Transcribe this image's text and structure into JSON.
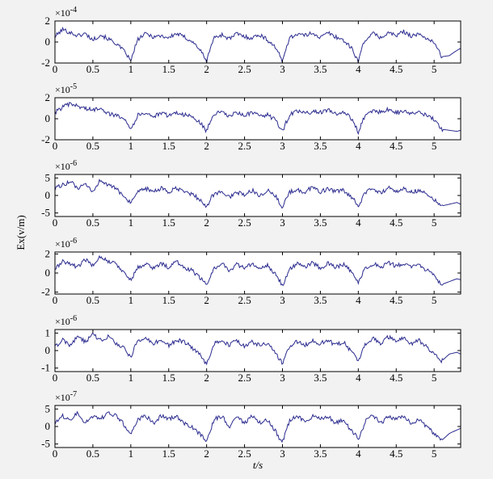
{
  "figure": {
    "ylabel": "Ex(v/m)",
    "xlabel": "t/s",
    "x_ticks": [
      "0",
      "0.5",
      "1",
      "1.5",
      "2",
      "2.5",
      "3",
      "3.5",
      "4",
      "4.5",
      "5"
    ],
    "colors": {
      "figure_bg": "#f2f2f2",
      "axes_bg": "#ffffff",
      "line": "#2b2b8f",
      "frame": "#000000"
    }
  },
  "chart_data": [
    {
      "type": "line",
      "exponent_label": "×10-4",
      "y_ticks": [
        "2",
        "0",
        "-2"
      ],
      "xlim": [
        0,
        5.35
      ],
      "ylim": [
        -2,
        2
      ],
      "x": [
        0,
        0.1,
        0.2,
        0.3,
        0.4,
        0.5,
        0.6,
        0.7,
        0.8,
        0.9,
        0.95,
        1,
        1.05,
        1.1,
        1.2,
        1.3,
        1.4,
        1.5,
        1.6,
        1.7,
        1.8,
        1.9,
        1.95,
        2,
        2.05,
        2.1,
        2.2,
        2.3,
        2.4,
        2.5,
        2.6,
        2.7,
        2.8,
        2.9,
        2.95,
        3,
        3.05,
        3.1,
        3.2,
        3.3,
        3.4,
        3.5,
        3.6,
        3.7,
        3.8,
        3.9,
        3.95,
        4,
        4.05,
        4.1,
        4.2,
        4.3,
        4.4,
        4.5,
        4.6,
        4.7,
        4.8,
        4.9,
        5,
        5.05,
        5.1,
        5.2,
        5.3,
        5.35
      ],
      "y": [
        0.5,
        1.2,
        0.9,
        0.6,
        0.8,
        0.2,
        0.7,
        0.3,
        -0.1,
        -0.8,
        -1.2,
        -1.9,
        -0.6,
        0.3,
        0.8,
        0.5,
        0.6,
        0.4,
        0.8,
        0.5,
        0.1,
        -0.6,
        -1.2,
        -1.9,
        -0.5,
        0.4,
        0.7,
        0.3,
        0.8,
        0.5,
        0.4,
        0.7,
        0.2,
        -0.4,
        -1.1,
        -1.9,
        -0.4,
        0.4,
        0.8,
        0.6,
        0.9,
        0.4,
        0.9,
        0.5,
        0.2,
        -0.5,
        -1.1,
        -1.9,
        -0.5,
        0.3,
        0.8,
        0.4,
        0.9,
        0.6,
        1.0,
        0.6,
        0.7,
        0.4,
        -0.1,
        -0.7,
        -1.4,
        -1.3,
        -0.8,
        -0.6
      ]
    },
    {
      "type": "line",
      "exponent_label": "×10-5",
      "y_ticks": [
        "2",
        "0",
        "-2"
      ],
      "xlim": [
        0,
        5.35
      ],
      "ylim": [
        -2,
        2
      ],
      "x": [
        0,
        0.1,
        0.2,
        0.3,
        0.4,
        0.5,
        0.6,
        0.7,
        0.8,
        0.9,
        0.95,
        1,
        1.05,
        1.1,
        1.2,
        1.3,
        1.4,
        1.5,
        1.6,
        1.7,
        1.8,
        1.9,
        1.95,
        2,
        2.05,
        2.1,
        2.2,
        2.3,
        2.4,
        2.5,
        2.6,
        2.7,
        2.8,
        2.9,
        2.95,
        3,
        3.05,
        3.1,
        3.2,
        3.3,
        3.4,
        3.5,
        3.6,
        3.7,
        3.8,
        3.9,
        3.95,
        4,
        4.05,
        4.1,
        4.2,
        4.3,
        4.4,
        4.5,
        4.6,
        4.7,
        4.8,
        4.9,
        5,
        5.05,
        5.1,
        5.2,
        5.3,
        5.35
      ],
      "y": [
        0.6,
        1.1,
        1.4,
        1.2,
        1.0,
        0.8,
        1.1,
        0.5,
        0.3,
        0.2,
        -0.3,
        -1.0,
        -0.3,
        0.4,
        0.6,
        0.2,
        0.5,
        0.3,
        0.6,
        0.4,
        0.2,
        -0.3,
        -0.7,
        -1.2,
        -0.2,
        0.5,
        0.6,
        0.2,
        0.6,
        0.3,
        0.6,
        0.2,
        0.4,
        -0.1,
        -0.6,
        -1.2,
        -0.3,
        0.4,
        0.7,
        0.5,
        0.7,
        0.6,
        0.8,
        0.5,
        0.6,
        0.1,
        -0.5,
        -1.3,
        -0.3,
        0.4,
        0.8,
        0.6,
        0.9,
        0.6,
        0.7,
        0.5,
        0.6,
        0.3,
        -0.1,
        -0.6,
        -1.0,
        -1.1,
        -1.2,
        -1.1
      ]
    },
    {
      "type": "line",
      "exponent_label": "×10-6",
      "y_ticks": [
        "5",
        "0",
        "-5"
      ],
      "xlim": [
        0,
        5.35
      ],
      "ylim": [
        -6,
        6
      ],
      "x": [
        0,
        0.1,
        0.2,
        0.3,
        0.4,
        0.5,
        0.6,
        0.7,
        0.8,
        0.9,
        0.95,
        1,
        1.05,
        1.1,
        1.2,
        1.3,
        1.4,
        1.5,
        1.6,
        1.7,
        1.8,
        1.9,
        1.95,
        2,
        2.05,
        2.1,
        2.2,
        2.3,
        2.4,
        2.5,
        2.6,
        2.7,
        2.8,
        2.9,
        2.95,
        3,
        3.05,
        3.1,
        3.2,
        3.3,
        3.4,
        3.5,
        3.6,
        3.7,
        3.8,
        3.9,
        3.95,
        4,
        4.05,
        4.1,
        4.2,
        4.3,
        4.4,
        4.5,
        4.6,
        4.7,
        4.8,
        4.9,
        5,
        5.05,
        5.1,
        5.2,
        5.3,
        5.35
      ],
      "y": [
        2,
        3,
        4,
        2,
        3,
        1,
        4.5,
        3,
        2,
        0,
        -1,
        -2,
        -1,
        1,
        2,
        1,
        2,
        1,
        2,
        1,
        0.5,
        -1,
        -2,
        -3.5,
        -1,
        0.5,
        1,
        -0.5,
        1,
        0,
        1.5,
        0,
        1.5,
        0,
        -1.5,
        -3.5,
        -1,
        1,
        1.5,
        1,
        2.5,
        1,
        2,
        1,
        1.5,
        -0.5,
        -1.5,
        -3,
        -1,
        1,
        2,
        0.5,
        2.5,
        1,
        2,
        1,
        1.5,
        0.5,
        -1,
        -2,
        -3,
        -2.5,
        -2,
        -2.5
      ]
    },
    {
      "type": "line",
      "exponent_label": "×10-6",
      "y_ticks": [
        "2",
        "0",
        "-2"
      ],
      "xlim": [
        0,
        5.35
      ],
      "ylim": [
        -2.2,
        2.2
      ],
      "x": [
        0,
        0.1,
        0.2,
        0.3,
        0.4,
        0.5,
        0.6,
        0.7,
        0.8,
        0.9,
        0.95,
        1,
        1.05,
        1.1,
        1.2,
        1.3,
        1.4,
        1.5,
        1.6,
        1.7,
        1.8,
        1.9,
        1.95,
        2,
        2.05,
        2.1,
        2.2,
        2.3,
        2.4,
        2.5,
        2.6,
        2.7,
        2.8,
        2.9,
        2.95,
        3,
        3.05,
        3.1,
        3.2,
        3.3,
        3.4,
        3.5,
        3.6,
        3.7,
        3.8,
        3.9,
        3.95,
        4,
        4.05,
        4.1,
        4.2,
        4.3,
        4.4,
        4.5,
        4.6,
        4.7,
        4.8,
        4.9,
        5,
        5.05,
        5.1,
        5.2,
        5.3,
        5.35
      ],
      "y": [
        0.4,
        1.2,
        1.0,
        0.6,
        1.4,
        0.8,
        1.8,
        1.2,
        1.0,
        0.2,
        -0.3,
        -0.8,
        0.0,
        0.6,
        1.0,
        0.5,
        1.0,
        0.6,
        1.2,
        0.6,
        0.3,
        -0.4,
        -0.8,
        -1.3,
        -0.3,
        0.5,
        1.0,
        0.3,
        0.9,
        0.5,
        1.0,
        0.4,
        0.8,
        0.0,
        -0.6,
        -1.3,
        -0.4,
        0.5,
        1.0,
        0.6,
        1.1,
        0.5,
        1.0,
        0.6,
        0.9,
        0.2,
        -0.4,
        -1.1,
        -0.2,
        0.6,
        1.0,
        0.5,
        1.1,
        0.7,
        1.0,
        0.6,
        0.9,
        0.3,
        -0.3,
        -0.9,
        -1.2,
        -0.9,
        -0.6,
        -0.7
      ]
    },
    {
      "type": "line",
      "exponent_label": "×10-6",
      "y_ticks": [
        "1",
        "0",
        "-1"
      ],
      "xlim": [
        0,
        5.35
      ],
      "ylim": [
        -1.2,
        1.2
      ],
      "x": [
        0,
        0.1,
        0.2,
        0.3,
        0.4,
        0.5,
        0.6,
        0.7,
        0.8,
        0.9,
        0.95,
        1,
        1.05,
        1.1,
        1.2,
        1.3,
        1.4,
        1.5,
        1.6,
        1.7,
        1.8,
        1.9,
        1.95,
        2,
        2.05,
        2.1,
        2.2,
        2.3,
        2.4,
        2.5,
        2.6,
        2.7,
        2.8,
        2.9,
        2.95,
        3,
        3.05,
        3.1,
        3.2,
        3.3,
        3.4,
        3.5,
        3.6,
        3.7,
        3.8,
        3.9,
        3.95,
        4,
        4.05,
        4.1,
        4.2,
        4.3,
        4.4,
        4.5,
        4.6,
        4.7,
        4.8,
        4.9,
        5,
        5.05,
        5.1,
        5.2,
        5.3,
        5.35
      ],
      "y": [
        0.2,
        0.6,
        0.3,
        0.8,
        0.5,
        0.9,
        0.6,
        0.8,
        0.4,
        0.2,
        -0.1,
        -0.4,
        0.2,
        0.5,
        0.7,
        0.4,
        0.6,
        0.3,
        0.6,
        0.5,
        0.2,
        -0.2,
        -0.5,
        -0.8,
        -0.2,
        0.4,
        0.6,
        0.3,
        0.6,
        0.2,
        0.5,
        0.3,
        0.4,
        -0.1,
        -0.4,
        -0.7,
        -0.2,
        0.3,
        0.5,
        0.3,
        0.6,
        0.4,
        0.6,
        0.3,
        0.5,
        0.0,
        -0.3,
        -0.6,
        -0.1,
        0.4,
        0.7,
        0.4,
        0.8,
        0.5,
        0.7,
        0.4,
        0.6,
        0.2,
        -0.2,
        -0.4,
        -0.6,
        -0.2,
        -0.1,
        -0.2
      ]
    },
    {
      "type": "line",
      "exponent_label": "×10-7",
      "y_ticks": [
        "5",
        "0",
        "-5"
      ],
      "xlim": [
        0,
        5.35
      ],
      "ylim": [
        -6,
        6
      ],
      "x": [
        0,
        0.1,
        0.2,
        0.3,
        0.4,
        0.5,
        0.6,
        0.7,
        0.8,
        0.9,
        0.95,
        1,
        1.05,
        1.1,
        1.2,
        1.3,
        1.4,
        1.5,
        1.6,
        1.7,
        1.8,
        1.9,
        1.95,
        2,
        2.05,
        2.1,
        2.2,
        2.3,
        2.4,
        2.5,
        2.6,
        2.7,
        2.8,
        2.9,
        2.95,
        3,
        3.05,
        3.1,
        3.2,
        3.3,
        3.4,
        3.5,
        3.6,
        3.7,
        3.8,
        3.9,
        3.95,
        4,
        4.05,
        4.1,
        4.2,
        4.3,
        4.4,
        4.5,
        4.6,
        4.7,
        4.8,
        4.9,
        5,
        5.05,
        5.1,
        5.2,
        5.3,
        5.35
      ],
      "y": [
        1,
        3,
        2,
        4,
        1,
        3,
        2,
        4,
        3,
        1,
        -1,
        -2,
        0,
        2,
        3,
        1,
        3,
        2,
        3,
        1,
        0,
        -2,
        -3,
        -4,
        -1,
        2,
        3,
        0,
        3,
        1,
        3,
        1,
        2,
        -1,
        -3,
        -4.5,
        -1,
        2,
        3,
        1,
        3,
        2,
        3,
        1,
        2,
        -1,
        -2,
        -4,
        -1,
        2,
        3,
        1,
        3,
        2,
        3,
        1,
        2,
        0,
        -2,
        -3,
        -4,
        -2,
        -1,
        -0.5
      ]
    }
  ]
}
